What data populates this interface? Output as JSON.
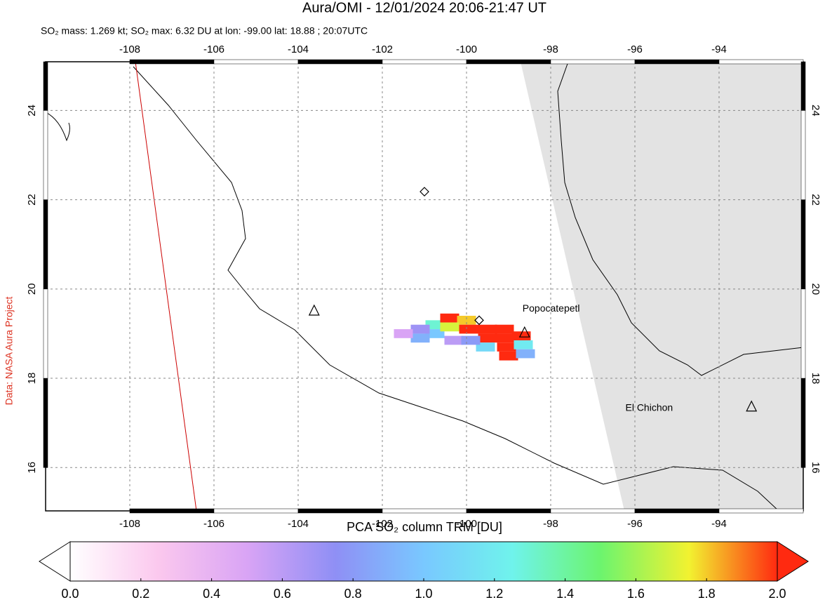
{
  "chart_data": {
    "type": "map",
    "title": "Aura/OMI - 12/01/2024 20:06-21:47 UT",
    "subtitle": "SO₂ mass: 1.269 kt; SO₂ max: 6.32 DU at lon: -99.00 lat: 18.88 ; 20:07UTC",
    "credit": "Data: NASA Aura Project",
    "xlim": [
      -110,
      -92
    ],
    "ylim": [
      15.03,
      25.09
    ],
    "xticks": [
      -108,
      -106,
      -104,
      -102,
      -100,
      -98,
      -96,
      -94
    ],
    "yticks": [
      16,
      18,
      20,
      22,
      24
    ],
    "grid": true,
    "cells": [
      {
        "lon": -100.75,
        "lat": 19.2,
        "value": 1.3
      },
      {
        "lon": -100.75,
        "lat": 19.0,
        "value": 1.0
      },
      {
        "lon": -100.4,
        "lat": 19.35,
        "value": 2.0
      },
      {
        "lon": -100.0,
        "lat": 19.3,
        "value": 1.8
      },
      {
        "lon": -100.4,
        "lat": 19.15,
        "value": 1.7
      },
      {
        "lon": -99.95,
        "lat": 19.1,
        "value": 2.0
      },
      {
        "lon": -99.5,
        "lat": 19.1,
        "value": 2.0
      },
      {
        "lon": -99.1,
        "lat": 19.1,
        "value": 2.0
      },
      {
        "lon": -99.5,
        "lat": 18.9,
        "value": 2.0
      },
      {
        "lon": -99.05,
        "lat": 18.9,
        "value": 2.0
      },
      {
        "lon": -98.7,
        "lat": 18.95,
        "value": 2.0
      },
      {
        "lon": -99.05,
        "lat": 18.7,
        "value": 2.0
      },
      {
        "lon": -99.0,
        "lat": 18.5,
        "value": 2.0
      },
      {
        "lon": -98.65,
        "lat": 18.75,
        "value": 1.2
      },
      {
        "lon": -101.1,
        "lat": 19.1,
        "value": 0.7
      },
      {
        "lon": -101.1,
        "lat": 18.9,
        "value": 0.9
      },
      {
        "lon": -101.5,
        "lat": 19.0,
        "value": 0.5
      },
      {
        "lon": -99.55,
        "lat": 18.7,
        "value": 1.1
      },
      {
        "lon": -98.6,
        "lat": 18.55,
        "value": 0.9
      },
      {
        "lon": -100.3,
        "lat": 18.85,
        "value": 0.6
      },
      {
        "lon": -99.9,
        "lat": 18.85,
        "value": 0.8
      }
    ],
    "volcanoes": [
      {
        "name": "Popocatepetl",
        "lon": -98.62,
        "lat": 19.02
      },
      {
        "name": "El Chichon",
        "lon": -93.23,
        "lat": 17.36
      },
      {
        "name": null,
        "lon": -103.62,
        "lat": 19.51
      }
    ],
    "markers": {
      "lon": [
        -101.0,
        -99.7
      ],
      "lat": [
        22.18,
        19.3
      ]
    },
    "colorbar": {
      "label": "PCA SO₂ column TRM [DU]",
      "lim": [
        0,
        2
      ],
      "colors": [
        "#ffffff",
        "#fbc8ee",
        "#d9a4f5",
        "#8f8ff5",
        "#79c8ff",
        "#6ff3ec",
        "#6cf46e",
        "#f2f230",
        "#ff2a10"
      ],
      "ticks": [
        {
          "value": 0,
          "label": "0.0"
        },
        {
          "value": 0.2,
          "label": "0.2"
        },
        {
          "value": 0.4,
          "label": "0.4"
        },
        {
          "value": 0.6,
          "label": "0.6"
        },
        {
          "value": 0.8,
          "label": "0.8"
        },
        {
          "value": 1.0,
          "label": "1.0"
        },
        {
          "value": 1.2,
          "label": "1.2"
        },
        {
          "value": 1.4,
          "label": "1.4"
        },
        {
          "value": 1.6,
          "label": "1.6"
        },
        {
          "value": 1.8,
          "label": "1.8"
        },
        {
          "value": 2.0,
          "label": "2.0"
        }
      ]
    }
  }
}
